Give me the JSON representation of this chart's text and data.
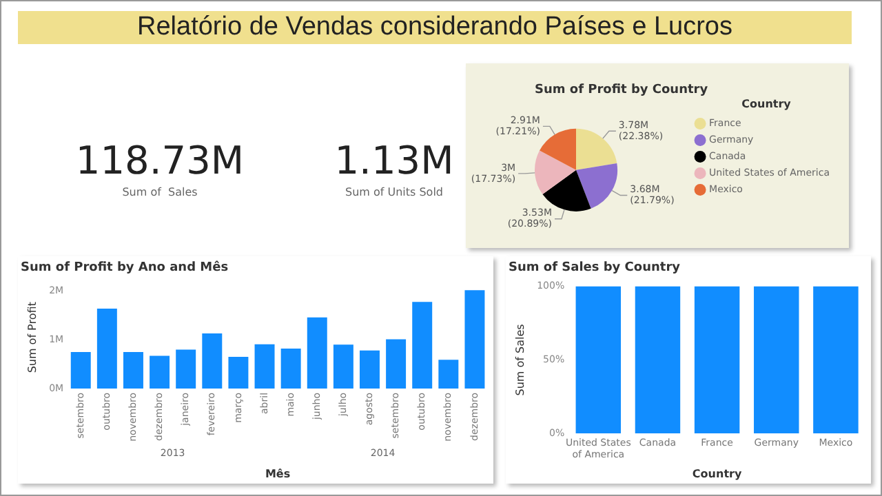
{
  "chart_data": [
    {
      "type": "other",
      "title": "Relatório de Vendas considerando Países e Lucros",
      "annotations": [
        "118.73M",
        "Sum of  Sales",
        "1.13M",
        "Sum of Units Sold"
      ]
    },
    {
      "type": "pie",
      "title": "Sum of Profit by Country",
      "categories": [
        "France",
        "Germany",
        "Canada",
        "United States of America",
        "Mexico"
      ],
      "values": [
        3780000,
        3680000,
        3530000,
        3000000,
        2910000
      ],
      "colors": [
        "#ebdf93",
        "#8c6fd0",
        "#000000",
        "#ecb6bc",
        "#e66c37"
      ],
      "value_labels": [
        "3.78M (22.38%)",
        "3.68M (21.79%)",
        "3.53M (20.89%)",
        "3M (17.73%)",
        "2.91M (17.21%)"
      ],
      "legend": "right",
      "legend_title": "Country"
    },
    {
      "type": "bar",
      "title": "Sum of Profit by Ano and Mês",
      "xlabel": "Mês",
      "ylabel": "Sum of Profit",
      "categories": [
        "setembro",
        "outubro",
        "novembro",
        "dezembro",
        "janeiro",
        "fevereiro",
        "março",
        "abril",
        "maio",
        "junho",
        "julho",
        "agosto",
        "setembro",
        "outubro",
        "novembro",
        "dezembro"
      ],
      "values": [
        0.75,
        1.64,
        0.75,
        0.67,
        0.8,
        1.13,
        0.65,
        0.91,
        0.82,
        1.46,
        0.9,
        0.78,
        1.01,
        1.78,
        0.59,
        2.02
      ],
      "color": "#118dff",
      "ylim": [
        0,
        2.1
      ],
      "yticks": [
        {
          "value": 0,
          "label": "0M"
        },
        {
          "value": 1,
          "label": "1M"
        },
        {
          "value": 2,
          "label": "2M"
        }
      ],
      "grid": false,
      "legend": false,
      "annotations": [
        "2013",
        "2014"
      ]
    },
    {
      "type": "bar",
      "title": "Sum of Sales by Country",
      "xlabel": "Country",
      "ylabel": "Sum of Sales",
      "categories": [
        "United States of America",
        "Canada",
        "France",
        "Germany",
        "Mexico"
      ],
      "values": [
        100,
        100,
        100,
        100,
        100
      ],
      "color": "#118dff",
      "ylim": [
        0,
        100
      ],
      "yticks": [
        {
          "value": 0,
          "label": "0%"
        },
        {
          "value": 50,
          "label": "50%"
        },
        {
          "value": 100,
          "label": "100%"
        }
      ],
      "grid": false,
      "legend": false
    }
  ]
}
